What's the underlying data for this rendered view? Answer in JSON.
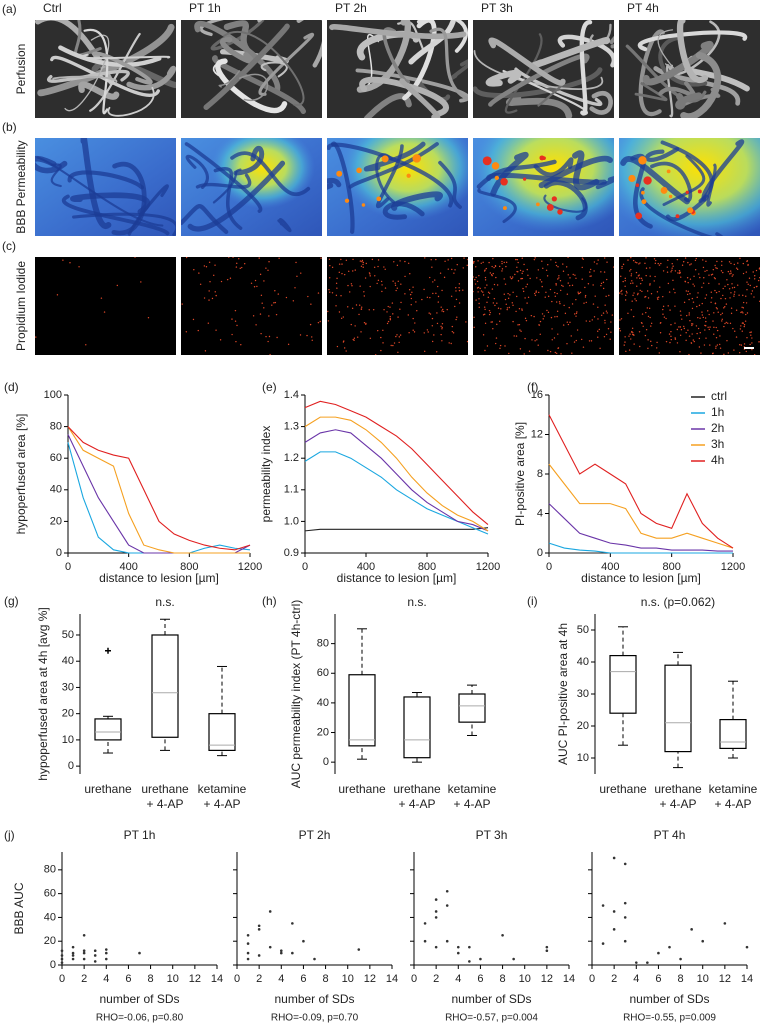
{
  "image_grid": {
    "columns": [
      "Ctrl",
      "PT 1h",
      "PT 2h",
      "PT 3h",
      "PT 4h"
    ],
    "rows": [
      {
        "panel": "(a)",
        "label": "Perfusion"
      },
      {
        "panel": "(b)",
        "label": "BBB Permeability"
      },
      {
        "panel": "(c)",
        "label": "Propidium Iodide"
      }
    ]
  },
  "chart_data": [
    {
      "type": "line",
      "panel": "(d)",
      "xlabel": "distance to lesion [µm]",
      "ylabel": "hypoperfused area [%]",
      "x": [
        0,
        100,
        200,
        300,
        400,
        500,
        600,
        700,
        800,
        900,
        1000,
        1100,
        1200
      ],
      "xlim": [
        0,
        1200
      ],
      "xticks": [
        0,
        400,
        800,
        1200
      ],
      "ylim": [
        0,
        100
      ],
      "yticks": [
        0,
        20,
        40,
        60,
        80,
        100
      ],
      "series": [
        {
          "color": "#1aa7e0",
          "values": [
            70,
            35,
            10,
            2,
            0,
            0,
            0,
            0,
            0,
            3,
            5,
            3,
            2
          ]
        },
        {
          "color": "#6a35a8",
          "values": [
            75,
            55,
            35,
            20,
            5,
            0,
            0,
            0,
            0,
            0,
            0,
            0,
            5
          ]
        },
        {
          "color": "#f5a020",
          "values": [
            80,
            65,
            60,
            55,
            25,
            5,
            2,
            0,
            0,
            0,
            0,
            0,
            0
          ]
        },
        {
          "color": "#e02020",
          "values": [
            80,
            70,
            65,
            62,
            60,
            40,
            20,
            12,
            8,
            5,
            3,
            2,
            5
          ]
        }
      ]
    },
    {
      "type": "line",
      "panel": "(e)",
      "xlabel": "distance to lesion [µm]",
      "ylabel": "permeability index",
      "x": [
        0,
        100,
        200,
        300,
        400,
        500,
        600,
        700,
        800,
        900,
        1000,
        1100,
        1200
      ],
      "xlim": [
        0,
        1200
      ],
      "xticks": [
        0,
        400,
        800,
        1200
      ],
      "ylim": [
        0.9,
        1.4
      ],
      "yticks": [
        0.9,
        {
          "value": 1,
          "label": "1.0"
        },
        1.1,
        1.2,
        1.3,
        1.4
      ],
      "series": [
        {
          "color": "#222222",
          "values": [
            0.97,
            0.975,
            0.975,
            0.975,
            0.975,
            0.975,
            0.975,
            0.975,
            0.975,
            0.975,
            0.975,
            0.975,
            0.98
          ]
        },
        {
          "color": "#1aa7e0",
          "values": [
            1.19,
            1.22,
            1.22,
            1.2,
            1.17,
            1.14,
            1.1,
            1.07,
            1.04,
            1.02,
            1.0,
            0.98,
            0.96
          ]
        },
        {
          "color": "#6a35a8",
          "values": [
            1.25,
            1.28,
            1.29,
            1.28,
            1.24,
            1.2,
            1.15,
            1.1,
            1.06,
            1.03,
            1.0,
            0.99,
            0.97
          ]
        },
        {
          "color": "#f5a020",
          "values": [
            1.3,
            1.33,
            1.33,
            1.32,
            1.29,
            1.25,
            1.2,
            1.14,
            1.09,
            1.05,
            1.02,
            1.0,
            0.97
          ]
        },
        {
          "color": "#e02020",
          "values": [
            1.36,
            1.38,
            1.37,
            1.35,
            1.33,
            1.3,
            1.27,
            1.23,
            1.18,
            1.13,
            1.08,
            1.03,
            0.99
          ]
        }
      ]
    },
    {
      "type": "line",
      "panel": "(f)",
      "xlabel": "distance to lesion [µm]",
      "ylabel": "PI-positive area [%]",
      "legend": "upper right",
      "x": [
        0,
        100,
        200,
        300,
        400,
        500,
        600,
        700,
        800,
        900,
        1000,
        1100,
        1200
      ],
      "xlim": [
        0,
        1200
      ],
      "xticks": [
        0,
        400,
        800,
        1200
      ],
      "ylim": [
        0,
        16
      ],
      "yticks": [
        0,
        4,
        8,
        12,
        16
      ],
      "series": [
        {
          "name": "ctrl",
          "color": "#222222",
          "values": [
            0,
            0,
            0,
            0,
            0,
            0,
            0,
            0,
            0,
            0,
            0,
            0,
            0
          ]
        },
        {
          "name": "1h",
          "color": "#1aa7e0",
          "values": [
            1,
            0.5,
            0.3,
            0.2,
            0,
            0,
            0,
            0,
            0,
            0,
            0,
            0,
            0
          ]
        },
        {
          "name": "2h",
          "color": "#6a35a8",
          "values": [
            5,
            3.5,
            2,
            1.5,
            1,
            0.8,
            0.5,
            0.5,
            0.3,
            0.3,
            0.3,
            0.2,
            0.2
          ]
        },
        {
          "name": "3h",
          "color": "#f5a020",
          "values": [
            9,
            7,
            5,
            5,
            5,
            4.5,
            2,
            1.5,
            1.5,
            2,
            1.5,
            1,
            0.5
          ]
        },
        {
          "name": "4h",
          "color": "#e02020",
          "values": [
            14,
            11,
            8,
            9,
            8,
            7,
            4,
            3,
            2.5,
            6,
            3,
            1.5,
            0.5
          ]
        }
      ]
    },
    {
      "type": "box",
      "panel": "(g)",
      "annotation": "n.s.",
      "ylabel": "hypoperfused area at 4h [avg %]",
      "categories": [
        [
          "urethane"
        ],
        [
          "urethane",
          "+ 4-AP"
        ],
        [
          "ketamine",
          "+ 4-AP"
        ]
      ],
      "ylim": [
        -3,
        58
      ],
      "yticks": [
        0,
        10,
        20,
        30,
        40,
        50
      ],
      "boxes": [
        {
          "min": 5,
          "q1": 10,
          "median": 13,
          "q3": 18,
          "max": 19,
          "outliers": [
            44
          ]
        },
        {
          "min": 6,
          "q1": 11,
          "median": 28,
          "q3": 50,
          "max": 56,
          "outliers": []
        },
        {
          "min": 4,
          "q1": 6,
          "median": 8,
          "q3": 20,
          "max": 38,
          "outliers": []
        }
      ]
    },
    {
      "type": "box",
      "panel": "(h)",
      "annotation": "n.s.",
      "ylabel": "AUC permeability index (PT 4h-ctrl)",
      "categories": [
        [
          "urethane"
        ],
        [
          "urethane",
          "+ 4-AP"
        ],
        [
          "ketamine",
          "+ 4-AP"
        ]
      ],
      "ylim": [
        -8,
        100
      ],
      "yticks": [
        0,
        20,
        40,
        60,
        80
      ],
      "boxes": [
        {
          "min": 2,
          "q1": 11,
          "median": 15,
          "q3": 59,
          "max": 90,
          "outliers": []
        },
        {
          "min": 0,
          "q1": 3,
          "median": 15,
          "q3": 44,
          "max": 47,
          "outliers": []
        },
        {
          "min": 18,
          "q1": 27,
          "median": 38,
          "q3": 46,
          "max": 52,
          "outliers": []
        }
      ]
    },
    {
      "type": "box",
      "panel": "(i)",
      "annotation": "n.s. (p=0.062)",
      "ylabel": "AUC PI-positive area at 4h",
      "categories": [
        [
          "urethane"
        ],
        [
          "urethane",
          "+ 4-AP"
        ],
        [
          "ketamine",
          "+ 4-AP"
        ]
      ],
      "ylim": [
        5,
        55
      ],
      "yticks": [
        10,
        20,
        30,
        40,
        50
      ],
      "boxes": [
        {
          "min": 14,
          "q1": 24,
          "median": 37,
          "q3": 42,
          "max": 51,
          "outliers": []
        },
        {
          "min": 7,
          "q1": 12,
          "median": 21,
          "q3": 39,
          "max": 43,
          "outliers": []
        },
        {
          "min": 10,
          "q1": 13,
          "median": 15,
          "q3": 22,
          "max": 34,
          "outliers": []
        }
      ]
    },
    {
      "type": "scatter",
      "panel": "(j)",
      "title": "PT 1h",
      "xlabel": "number of SDs",
      "ylabel": "BBB AUC",
      "annotation": "RHO=-0.06, p=0.80",
      "xlim": [
        0,
        14
      ],
      "xticks": [
        0,
        2,
        4,
        6,
        8,
        10,
        12,
        14
      ],
      "ylim": [
        0,
        95
      ],
      "yticks": [
        0,
        20,
        40,
        60,
        80
      ],
      "x": [
        0,
        0,
        0,
        0,
        1,
        1,
        1,
        1,
        2,
        2,
        2,
        2,
        3,
        3,
        3,
        4,
        4,
        4,
        7
      ],
      "values": [
        2,
        5,
        8,
        12,
        5,
        8,
        10,
        15,
        5,
        10,
        12,
        25,
        3,
        8,
        12,
        5,
        10,
        13,
        10
      ]
    },
    {
      "type": "scatter",
      "title": "PT 2h",
      "xlabel": "number of SDs",
      "annotation": "RHO=-0.09, p=0.70",
      "xlim": [
        0,
        14
      ],
      "xticks": [
        0,
        2,
        4,
        6,
        8,
        10,
        12,
        14
      ],
      "ylim": [
        0,
        95
      ],
      "yticks": [
        0,
        20,
        40,
        60,
        80
      ],
      "ytick_labels": false,
      "x": [
        1,
        1,
        1,
        1,
        2,
        2,
        2,
        3,
        3,
        4,
        4,
        5,
        5,
        6,
        7,
        11
      ],
      "values": [
        5,
        10,
        18,
        25,
        8,
        30,
        33,
        15,
        45,
        10,
        12,
        10,
        35,
        20,
        5,
        13
      ]
    },
    {
      "type": "scatter",
      "title": "PT 3h",
      "xlabel": "number of SDs",
      "annotation": "RHO=-0.57, p=0.004",
      "xlim": [
        0,
        14
      ],
      "xticks": [
        0,
        2,
        4,
        6,
        8,
        10,
        12,
        14
      ],
      "ylim": [
        0,
        95
      ],
      "yticks": [
        0,
        20,
        40,
        60,
        80
      ],
      "ytick_labels": false,
      "x": [
        1,
        1,
        2,
        2,
        2,
        2,
        3,
        3,
        3,
        4,
        4,
        5,
        5,
        6,
        8,
        9,
        12,
        12
      ],
      "values": [
        20,
        35,
        15,
        40,
        45,
        55,
        20,
        62,
        50,
        10,
        15,
        15,
        3,
        5,
        25,
        5,
        12,
        15
      ]
    },
    {
      "type": "scatter",
      "title": "PT 4h",
      "xlabel": "number of SDs",
      "annotation": "RHO=-0.55, p=0.009",
      "xlim": [
        0,
        14
      ],
      "xticks": [
        0,
        2,
        4,
        6,
        8,
        10,
        12,
        14
      ],
      "ylim": [
        0,
        95
      ],
      "yticks": [
        0,
        20,
        40,
        60,
        80
      ],
      "ytick_labels": false,
      "x": [
        1,
        1,
        2,
        2,
        2,
        3,
        3,
        3,
        3,
        4,
        5,
        6,
        7,
        8,
        9,
        10,
        12,
        14
      ],
      "values": [
        50,
        18,
        90,
        45,
        30,
        85,
        52,
        40,
        20,
        2,
        2,
        10,
        15,
        5,
        30,
        20,
        35,
        15
      ]
    }
  ]
}
